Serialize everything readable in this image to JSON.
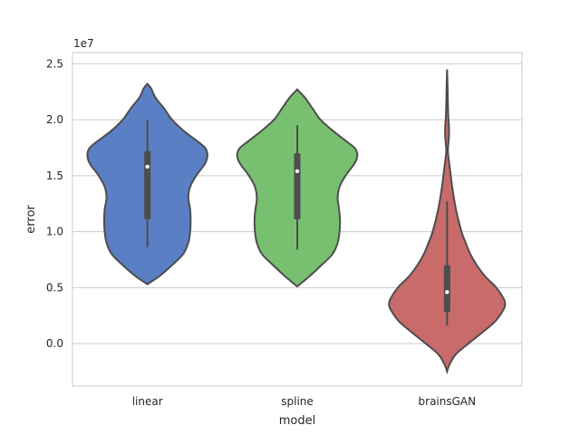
{
  "chart_data": {
    "type": "violin",
    "xlabel": "model",
    "ylabel": "error",
    "y_offset_label": "1e7",
    "y_scale": 10000000,
    "ylim": [
      -0.38,
      2.6
    ],
    "yticks": [
      0.0,
      0.5,
      1.0,
      1.5,
      2.0,
      2.5
    ],
    "ytick_labels": [
      "0.0",
      "0.5",
      "1.0",
      "1.5",
      "2.0",
      "2.5"
    ],
    "grid": "horizontal",
    "categories": [
      "linear",
      "spline",
      "brainsGAN"
    ],
    "series": [
      {
        "category": "linear",
        "color": "#5a7fc4",
        "median": 1.58,
        "q1": 1.11,
        "q3": 1.72,
        "whisker_low": 0.86,
        "whisker_high": 2.0,
        "density": [
          [
            0.53,
            0.0
          ],
          [
            0.6,
            0.25
          ],
          [
            0.7,
            0.53
          ],
          [
            0.8,
            0.77
          ],
          [
            0.9,
            0.88
          ],
          [
            1.0,
            0.92
          ],
          [
            1.1,
            0.93
          ],
          [
            1.2,
            0.92
          ],
          [
            1.3,
            0.88
          ],
          [
            1.4,
            0.92
          ],
          [
            1.5,
            1.05
          ],
          [
            1.6,
            1.23
          ],
          [
            1.65,
            1.28
          ],
          [
            1.7,
            1.29
          ],
          [
            1.75,
            1.24
          ],
          [
            1.8,
            1.1
          ],
          [
            1.9,
            0.78
          ],
          [
            2.0,
            0.53
          ],
          [
            2.1,
            0.36
          ],
          [
            2.2,
            0.17
          ],
          [
            2.28,
            0.08
          ],
          [
            2.32,
            0.0
          ]
        ]
      },
      {
        "category": "spline",
        "color": "#77c070",
        "median": 1.54,
        "q1": 1.11,
        "q3": 1.7,
        "whisker_low": 0.84,
        "whisker_high": 1.95,
        "density": [
          [
            0.51,
            0.0
          ],
          [
            0.6,
            0.26
          ],
          [
            0.7,
            0.52
          ],
          [
            0.8,
            0.76
          ],
          [
            0.9,
            0.87
          ],
          [
            1.0,
            0.91
          ],
          [
            1.1,
            0.92
          ],
          [
            1.2,
            0.9
          ],
          [
            1.3,
            0.87
          ],
          [
            1.4,
            0.91
          ],
          [
            1.5,
            1.04
          ],
          [
            1.6,
            1.22
          ],
          [
            1.65,
            1.28
          ],
          [
            1.7,
            1.29
          ],
          [
            1.75,
            1.23
          ],
          [
            1.8,
            1.08
          ],
          [
            1.9,
            0.77
          ],
          [
            2.0,
            0.5
          ],
          [
            2.1,
            0.33
          ],
          [
            2.2,
            0.16
          ],
          [
            2.27,
            0.0
          ]
        ]
      },
      {
        "category": "brainsGAN",
        "color": "#c86b6a",
        "median": 0.46,
        "q1": 0.28,
        "q3": 0.7,
        "whisker_low": 0.16,
        "whisker_high": 1.27,
        "density": [
          [
            -0.25,
            0.0
          ],
          [
            -0.2,
            0.04
          ],
          [
            -0.1,
            0.18
          ],
          [
            0.0,
            0.46
          ],
          [
            0.1,
            0.76
          ],
          [
            0.2,
            1.04
          ],
          [
            0.3,
            1.21
          ],
          [
            0.35,
            1.25
          ],
          [
            0.4,
            1.22
          ],
          [
            0.5,
            1.06
          ],
          [
            0.6,
            0.82
          ],
          [
            0.7,
            0.64
          ],
          [
            0.8,
            0.5
          ],
          [
            0.9,
            0.4
          ],
          [
            1.0,
            0.31
          ],
          [
            1.2,
            0.19
          ],
          [
            1.4,
            0.11
          ],
          [
            1.6,
            0.05
          ],
          [
            1.7,
            0.02
          ],
          [
            1.75,
            0.02
          ],
          [
            1.85,
            0.04
          ],
          [
            1.95,
            0.04
          ],
          [
            2.0,
            0.03
          ],
          [
            2.1,
            0.02
          ],
          [
            2.3,
            0.01
          ],
          [
            2.45,
            0.0
          ]
        ]
      }
    ]
  }
}
